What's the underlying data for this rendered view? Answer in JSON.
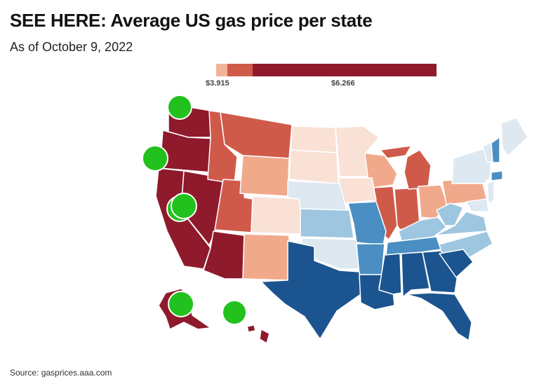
{
  "header": {
    "title": "SEE HERE: Average US gas price per state",
    "subtitle": "As of October 9, 2022"
  },
  "legend": {
    "min_label": "$3.915",
    "max_label": "$6.266",
    "colors": [
      "#f4b399",
      "#d05a4a",
      "#8e1a2c"
    ]
  },
  "palette": {
    "darkest_red": "#8e1a2c",
    "red": "#d05a4a",
    "salmon": "#f1a98b",
    "peach": "#f9e1d6",
    "pale_blue": "#dde8f1",
    "light_blue": "#9ec6e0",
    "mid_blue": "#4a8ec3",
    "navy": "#1c548f",
    "marker_green": "#22c11e"
  },
  "source": "Source: gasprices.aaa.com"
}
